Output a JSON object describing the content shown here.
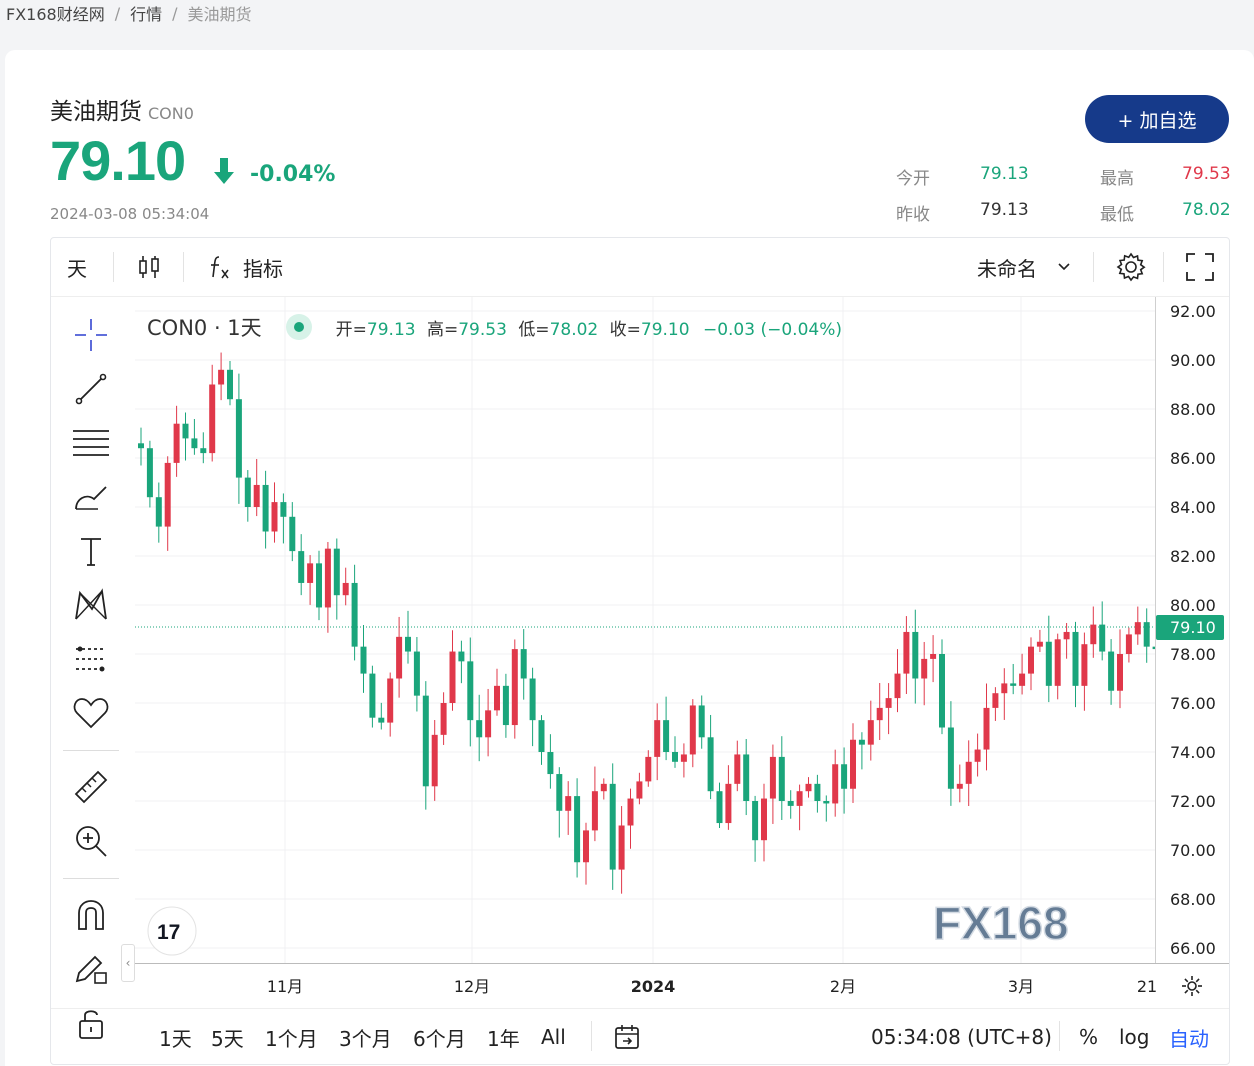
{
  "breadcrumb": {
    "items": [
      "FX168财经网",
      "行情",
      "美油期货"
    ],
    "separator": "/"
  },
  "header": {
    "name": "美油期货",
    "code": "CON0",
    "price": "79.10",
    "change_pct": "-0.04%",
    "timestamp": "2024-03-08 05:34:04",
    "add_button": "+ 加自选",
    "stats": {
      "open_label": "今开",
      "open": "79.13",
      "high_label": "最高",
      "high": "79.53",
      "prev_close_label": "昨收",
      "prev_close": "79.13",
      "low_label": "最低",
      "low": "78.02"
    }
  },
  "toolbar": {
    "interval": "天",
    "indicators": "指标",
    "layout_name": "未命名"
  },
  "legend": {
    "symbol": "CON0 · 1天",
    "open_label": "开=",
    "open": "79.13",
    "high_label": "高=",
    "high": "79.53",
    "low_label": "低=",
    "low": "78.02",
    "close_label": "收=",
    "close": "79.10",
    "change": "−0.03 (−0.04%)"
  },
  "bottom": {
    "ranges": [
      "1天",
      "5天",
      "1个月",
      "3个月",
      "6个月",
      "1年",
      "All"
    ],
    "time": "05:34:08 (UTC+8)",
    "percent": "%",
    "log": "log",
    "auto": "自动"
  },
  "colors": {
    "up": "#e0384a",
    "down": "#1aa57b",
    "accent": "#163a8a"
  },
  "chart_data": {
    "type": "candlestick",
    "title": "",
    "price_axis": [
      92,
      90,
      88,
      86,
      84,
      82,
      80,
      78,
      76,
      74,
      72,
      70,
      68,
      66
    ],
    "y_axis_ticks": [
      "92.00",
      "90.00",
      "88.00",
      "86.00",
      "84.00",
      "82.00",
      "80.00",
      "78.00",
      "76.00",
      "74.00",
      "72.00",
      "70.00",
      "68.00",
      "66.00"
    ],
    "x_axis_ticks": [
      "11月",
      "12月",
      "2024",
      "2月",
      "3月",
      "21"
    ],
    "ylim": [
      65.6,
      92.6
    ],
    "last_price": "79.10",
    "grid": true,
    "closes": [
      86.4,
      84.4,
      83.2,
      85.8,
      87.4,
      86.8,
      86.4,
      86.2,
      89.0,
      89.6,
      88.4,
      85.2,
      84.0,
      84.9,
      83.0,
      84.2,
      83.6,
      82.2,
      80.9,
      81.7,
      79.9,
      82.3,
      80.4,
      80.9,
      78.3,
      77.2,
      75.4,
      75.2,
      77.0,
      78.7,
      78.1,
      76.3,
      72.6,
      74.7,
      76.0,
      78.1,
      77.7,
      75.3,
      74.6,
      75.7,
      76.7,
      75.1,
      78.2,
      77.0,
      75.3,
      74.0,
      73.1,
      71.6,
      72.2,
      69.5,
      70.8,
      72.4,
      72.7,
      69.2,
      71.0,
      72.1,
      72.8,
      73.8,
      75.3,
      74.0,
      73.6,
      73.9,
      75.9,
      74.6,
      72.4,
      71.1,
      72.7,
      73.9,
      72.0,
      70.4,
      72.1,
      73.8,
      72.0,
      71.8,
      72.4,
      72.7,
      72.0,
      71.9,
      73.5,
      72.5,
      74.5,
      74.3,
      75.3,
      75.8,
      76.2,
      77.2,
      78.9,
      77.0,
      77.8,
      78.0,
      75.0,
      72.5,
      72.7,
      73.6,
      74.1,
      75.8,
      76.4,
      76.8,
      76.7,
      77.2,
      78.3,
      78.5,
      76.7,
      78.6,
      78.9,
      76.7,
      78.4,
      79.2,
      78.1,
      76.5,
      78.0,
      78.8,
      79.3,
      78.3,
      78.2,
      79.1,
      79.9,
      78.6,
      79.3,
      79.1
    ]
  }
}
